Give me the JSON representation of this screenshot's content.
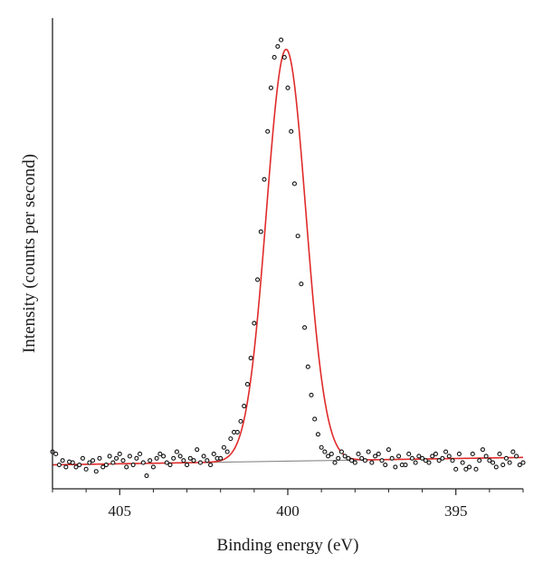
{
  "chart_data": {
    "type": "scatter",
    "xlabel": "Binding energy (eV)",
    "ylabel": "Intensity (counts per second)",
    "x_reversed": true,
    "xlim": [
      407.0,
      393.0
    ],
    "ylim": [
      -0.06,
      1.02
    ],
    "x_ticks": [
      405,
      400,
      395
    ],
    "x_tick_labels": [
      "405",
      "400",
      "395"
    ],
    "y_ticks_shown": false,
    "grid": false,
    "legend": "none",
    "colors": {
      "fit_curve": "#e02a2a",
      "background_line": "#8a8a8a",
      "data_marker_edge": "#111111",
      "axis": "#222222"
    },
    "fit_peak": {
      "center_ev": 400.05,
      "amplitude": 0.945,
      "fwhm_ev": 1.38
    },
    "background_line": {
      "x": [
        407.0,
        393.0
      ],
      "y": [
        -0.005,
        0.012
      ]
    },
    "series": [
      {
        "style": "open-circle markers",
        "x": [
          407.0,
          406.9,
          406.8,
          406.7,
          406.6,
          406.5,
          406.4,
          406.3,
          406.2,
          406.1,
          406.0,
          405.9,
          405.8,
          405.7,
          405.6,
          405.5,
          405.4,
          405.3,
          405.2,
          405.1,
          405.0,
          404.9,
          404.8,
          404.7,
          404.6,
          404.5,
          404.4,
          404.3,
          404.2,
          404.1,
          404.0,
          403.9,
          403.8,
          403.7,
          403.6,
          403.5,
          403.4,
          403.3,
          403.2,
          403.1,
          403.0,
          402.9,
          402.8,
          402.7,
          402.6,
          402.5,
          402.4,
          402.3,
          402.2,
          402.1,
          402.0,
          401.9,
          401.8,
          401.7,
          401.6,
          401.5,
          401.4,
          401.3,
          401.2,
          401.1,
          401.0,
          400.9,
          400.8,
          400.7,
          400.6,
          400.5,
          400.4,
          400.3,
          400.2,
          400.1,
          400.0,
          399.9,
          399.8,
          399.7,
          399.6,
          399.5,
          399.4,
          399.3,
          399.2,
          399.1,
          399.0,
          398.9,
          398.8,
          398.7,
          398.6,
          398.5,
          398.4,
          398.3,
          398.2,
          398.1,
          398.0,
          397.9,
          397.8,
          397.7,
          397.6,
          397.5,
          397.4,
          397.3,
          397.2,
          397.1,
          397.0,
          396.9,
          396.8,
          396.7,
          396.6,
          396.5,
          396.4,
          396.3,
          396.2,
          396.1,
          396.0,
          395.9,
          395.8,
          395.7,
          395.6,
          395.5,
          395.4,
          395.3,
          395.2,
          395.1,
          395.0,
          394.9,
          394.8,
          394.7,
          394.6,
          394.5,
          394.4,
          394.3,
          394.2,
          394.1,
          394.0,
          393.9,
          393.8,
          393.7,
          393.6,
          393.5,
          393.4,
          393.3,
          393.2,
          393.1,
          393.0
        ],
        "y": [
          0.025,
          0.02,
          -0.005,
          0.005,
          -0.01,
          0.002,
          0.0,
          -0.01,
          -0.005,
          0.01,
          -0.015,
          0.0,
          0.005,
          -0.02,
          0.01,
          -0.01,
          -0.005,
          0.015,
          0.0,
          0.01,
          0.02,
          0.005,
          -0.01,
          0.015,
          -0.005,
          0.01,
          0.02,
          0.0,
          -0.03,
          0.005,
          -0.01,
          0.01,
          0.02,
          0.015,
          0.0,
          -0.005,
          0.01,
          0.025,
          0.015,
          0.005,
          -0.005,
          0.01,
          0.005,
          0.03,
          0.0,
          0.015,
          0.005,
          -0.005,
          0.02,
          0.01,
          0.01,
          0.035,
          0.025,
          0.055,
          0.07,
          0.07,
          0.095,
          0.13,
          0.18,
          0.24,
          0.32,
          0.42,
          0.53,
          0.65,
          0.76,
          0.86,
          0.93,
          0.955,
          0.97,
          0.93,
          0.86,
          0.76,
          0.64,
          0.52,
          0.41,
          0.31,
          0.22,
          0.155,
          0.1,
          0.065,
          0.035,
          0.025,
          0.015,
          0.02,
          0.0,
          0.01,
          0.025,
          0.015,
          0.01,
          0.005,
          0.0,
          0.02,
          0.01,
          0.005,
          0.025,
          0.0,
          0.015,
          0.02,
          0.005,
          -0.005,
          0.03,
          0.01,
          -0.01,
          0.015,
          -0.005,
          -0.005,
          0.02,
          0.01,
          0.0,
          0.015,
          0.01,
          0.005,
          0.0,
          0.015,
          0.02,
          0.005,
          0.01,
          0.025,
          0.015,
          0.005,
          -0.015,
          0.02,
          0.0,
          -0.015,
          -0.01,
          0.02,
          -0.015,
          0.005,
          0.03,
          0.015,
          0.005,
          0.0,
          -0.01,
          0.02,
          -0.005,
          0.01,
          0.0,
          0.025,
          0.015,
          -0.005,
          0.0
        ]
      }
    ]
  }
}
